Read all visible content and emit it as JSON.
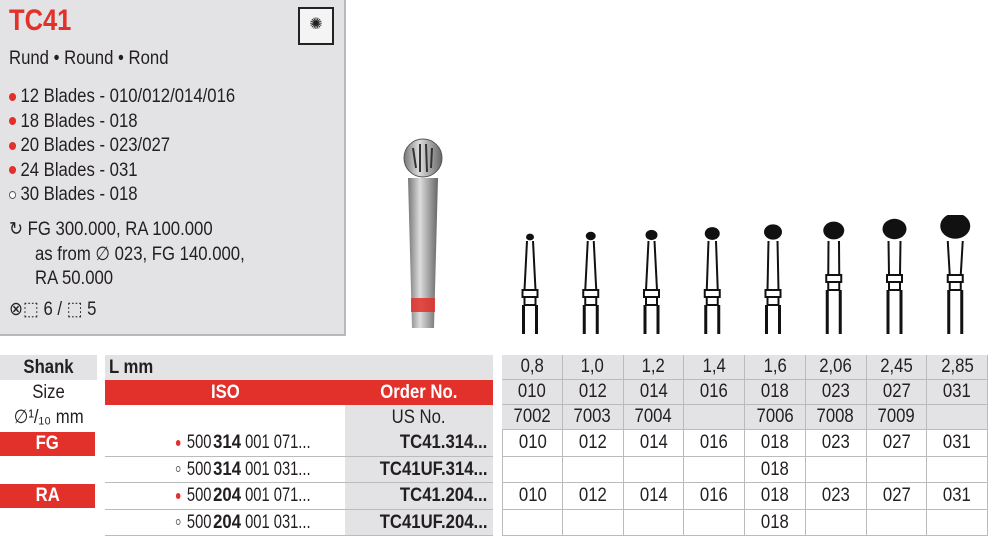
{
  "product": {
    "title": "TC41",
    "shape_names": "Rund • Round • Rond",
    "shape_icon": "round-bur-symbol-icon",
    "blades": [
      {
        "marker": "filled",
        "text": "12 Blades - 010/012/014/016"
      },
      {
        "marker": "filled",
        "text": "18 Blades - 018"
      },
      {
        "marker": "filled",
        "text": "20 Blades - 023/027"
      },
      {
        "marker": "filled",
        "text": "24 Blades - 031"
      },
      {
        "marker": "open",
        "text": "30 Blades - 018"
      }
    ],
    "speed_lines": [
      "FG 300.000, RA 100.000",
      "as from ∅ 023, FG 140.000,",
      "RA 50.000"
    ],
    "packaging": {
      "a": "6",
      "sep": "/",
      "b": "5"
    }
  },
  "colors": {
    "accent": "#e2302a",
    "panel": "#e3e3e5"
  },
  "table": {
    "shank_header": "Shank",
    "size_label": "Size",
    "diameter_label": "∅¹/₁₀ mm",
    "l_mm": "L mm",
    "iso_header": "ISO",
    "order_header": "Order No.",
    "us_header": "US No.",
    "lengths": [
      "0,8",
      "1,0",
      "1,2",
      "1,4",
      "1,6",
      "2,06",
      "2,45",
      "2,85"
    ],
    "sizes": [
      "010",
      "012",
      "014",
      "016",
      "018",
      "023",
      "027",
      "031"
    ],
    "us_numbers": [
      "7002",
      "7003",
      "7004",
      "",
      "7006",
      "7008",
      "7009",
      ""
    ],
    "rows": [
      {
        "shank": "FG",
        "marker": "filled",
        "iso_a": "500 ",
        "iso_b": "314",
        "iso_c": " 001 071...",
        "order": "TC41.314...",
        "cells": [
          "010",
          "012",
          "014",
          "016",
          "018",
          "023",
          "027",
          "031"
        ]
      },
      {
        "shank": "",
        "marker": "open",
        "iso_a": "500 ",
        "iso_b": "314",
        "iso_c": " 001 031...",
        "order": "TC41UF.314...",
        "cells": [
          "",
          "",
          "",
          "",
          "018",
          "",
          "",
          ""
        ]
      },
      {
        "shank": "RA",
        "marker": "filled",
        "iso_a": "500 ",
        "iso_b": "204",
        "iso_c": " 001 071...",
        "order": "TC41.204...",
        "cells": [
          "010",
          "012",
          "014",
          "016",
          "018",
          "023",
          "027",
          "031"
        ]
      },
      {
        "shank": "",
        "marker": "open",
        "iso_a": "500 ",
        "iso_b": "204",
        "iso_c": " 001 031...",
        "order": "TC41UF.204...",
        "cells": [
          "",
          "",
          "",
          "",
          "018",
          "",
          "",
          ""
        ]
      }
    ]
  }
}
